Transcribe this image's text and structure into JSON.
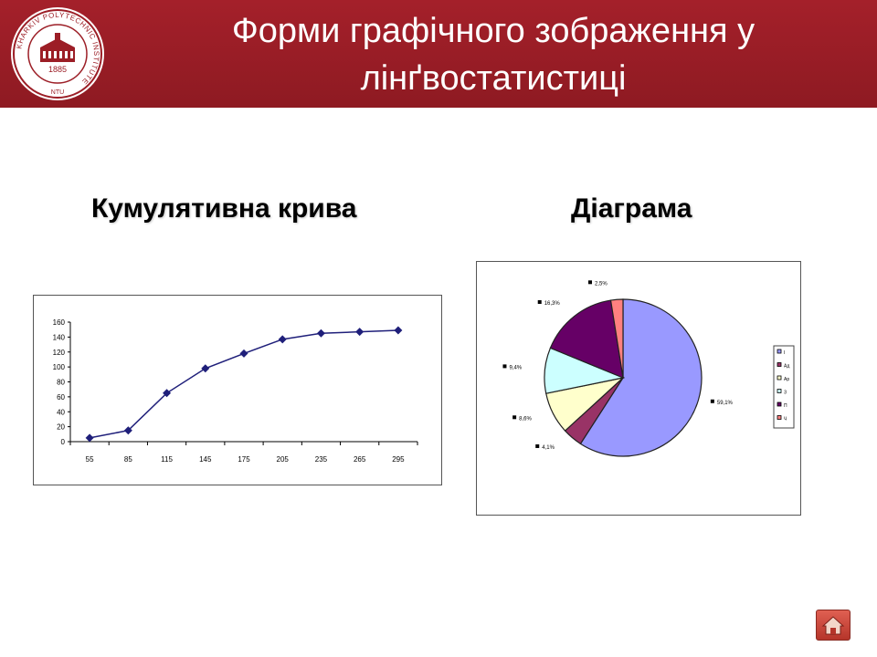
{
  "header": {
    "title_line1": "Форми графічного зображення у",
    "title_line2": "лінґвостатистиці",
    "logo": {
      "ring_text": "KHARKIV POLYTECHNIC INSTITUTE",
      "year": "1885",
      "abbr": "NTU",
      "icon": "university-building-icon"
    }
  },
  "left": {
    "heading": "Кумулятивна крива"
  },
  "right": {
    "heading": "Діаграма"
  },
  "colors": {
    "header_bg": "#9c1e26",
    "line_color": "#1f1f7a",
    "pie": [
      "#9999ff",
      "#993366",
      "#ffffcc",
      "#ccffff",
      "#660066",
      "#ff8080"
    ]
  },
  "chart_data": [
    {
      "type": "line",
      "title": "",
      "xlabel": "",
      "ylabel": "",
      "x": [
        55,
        85,
        115,
        145,
        175,
        205,
        235,
        265,
        295
      ],
      "series": [
        {
          "values": [
            5,
            15,
            65,
            98,
            118,
            137,
            145,
            147,
            149
          ]
        }
      ],
      "ylim": [
        0,
        160
      ],
      "yticks": [
        0,
        20,
        40,
        60,
        80,
        100,
        120,
        140,
        160
      ],
      "grid": false,
      "markers": "diamond"
    },
    {
      "type": "pie",
      "title": "",
      "slices": [
        {
          "label": "59,1%",
          "value": 59.1,
          "color": "#9999ff"
        },
        {
          "label": "4,1%",
          "value": 4.1,
          "color": "#993366"
        },
        {
          "label": "8,6%",
          "value": 8.6,
          "color": "#ffffcc"
        },
        {
          "label": "9,4%",
          "value": 9.4,
          "color": "#ccffff"
        },
        {
          "label": "16,3%",
          "value": 16.3,
          "color": "#660066"
        },
        {
          "label": "2,5%",
          "value": 2.5,
          "color": "#ff8080"
        }
      ],
      "legend": [
        "І",
        "Ад",
        "Ар",
        "З",
        "П",
        "Ч"
      ],
      "legend_position": "right"
    }
  ],
  "nav": {
    "home_icon": "home-icon"
  }
}
